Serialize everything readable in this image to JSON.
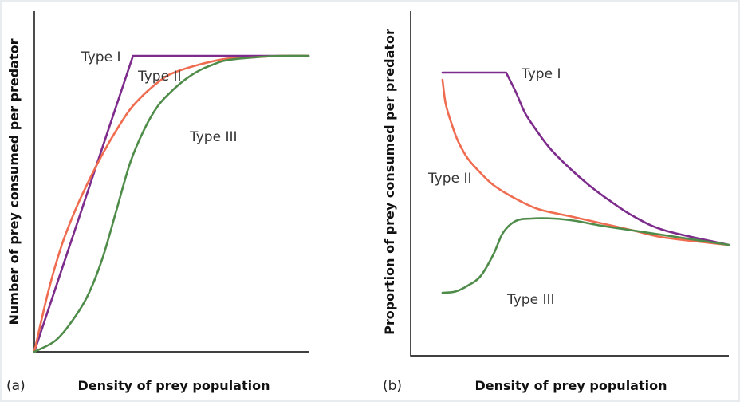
{
  "colors": {
    "type1": "#7d2c8c",
    "type2": "#ef6c50",
    "type3": "#4f8c4a"
  },
  "chart_data": [
    {
      "type": "line",
      "panel_label": "(a)",
      "xlabel": "Density of prey population",
      "ylabel": "Number of prey consumed per predator",
      "xlim": [
        0,
        100
      ],
      "ylim": [
        0,
        100
      ],
      "series": [
        {
          "name": "Type I",
          "key": "type1",
          "x": [
            0,
            36,
            100
          ],
          "y": [
            0,
            100,
            100
          ]
        },
        {
          "name": "Type II",
          "key": "type2",
          "x": [
            0,
            5,
            10,
            15,
            20,
            25,
            30,
            35,
            40,
            45,
            50,
            60,
            70,
            80,
            90,
            100
          ],
          "y": [
            0,
            20,
            36,
            48,
            58,
            67,
            75,
            82,
            87,
            91,
            94,
            97,
            99,
            99.5,
            100,
            100
          ]
        },
        {
          "name": "Type III",
          "key": "type3",
          "x": [
            0,
            8,
            15,
            20,
            25,
            30,
            35,
            40,
            45,
            50,
            55,
            60,
            65,
            70,
            80,
            90,
            100
          ],
          "y": [
            0,
            4,
            12,
            20,
            32,
            48,
            64,
            75,
            83,
            88,
            92,
            95,
            97,
            98.5,
            99.5,
            100,
            100
          ]
        }
      ],
      "annotations": [
        "Type I",
        "Type II",
        "Type III"
      ]
    },
    {
      "type": "line",
      "panel_label": "(b)",
      "xlabel": "Density of prey population",
      "ylabel": "Proportion of prey consumed per predator",
      "xlim": [
        0,
        100
      ],
      "ylim": [
        0,
        100
      ],
      "series": [
        {
          "name": "Type I",
          "key": "type1",
          "x": [
            10,
            30,
            33,
            36,
            40,
            44,
            50,
            56,
            62,
            70,
            80,
            100
          ],
          "y": [
            100,
            100,
            92,
            83,
            75,
            68,
            60,
            53,
            47,
            40,
            34,
            28
          ]
        },
        {
          "name": "Type II",
          "key": "type2",
          "x": [
            10,
            11,
            13,
            15,
            18,
            22,
            26,
            32,
            40,
            50,
            60,
            70,
            80,
            100
          ],
          "y": [
            97,
            87,
            78,
            71,
            64,
            58,
            53,
            48,
            43,
            40,
            37,
            34,
            31,
            28
          ]
        },
        {
          "name": "Type III",
          "key": "type3",
          "x": [
            10,
            14,
            18,
            22,
            26,
            29,
            33,
            38,
            45,
            52,
            60,
            70,
            80,
            100
          ],
          "y": [
            8,
            8.5,
            11,
            15,
            24,
            33,
            38,
            39,
            39,
            38,
            36,
            34,
            32,
            28
          ]
        }
      ],
      "annotations": [
        "Type I",
        "Type II",
        "Type III"
      ]
    }
  ]
}
